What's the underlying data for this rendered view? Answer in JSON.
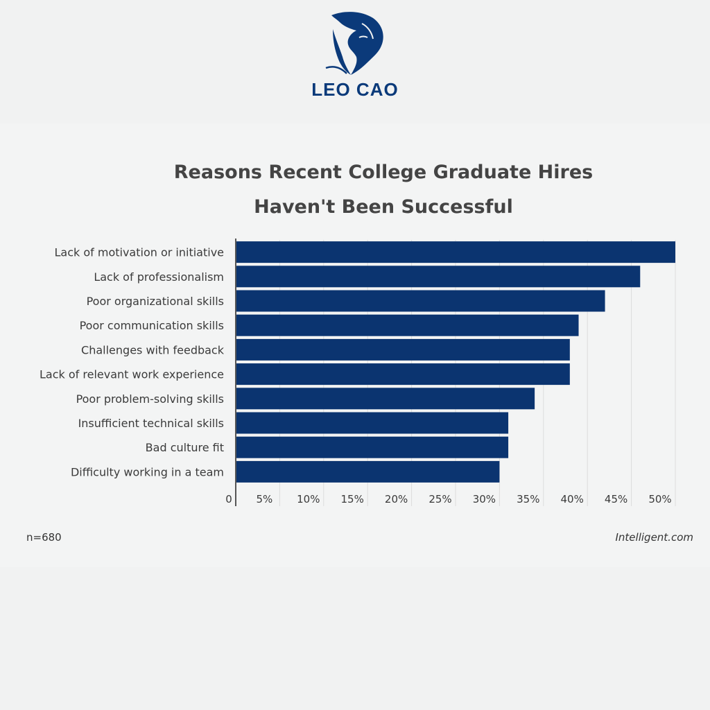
{
  "brand": {
    "name": "LEO CAO",
    "logo_icon": "lion-head-icon",
    "color": "#0b3a7a"
  },
  "footer": {
    "sample_size": "n=680",
    "source": "Intelligent.com"
  },
  "chart_data": {
    "type": "bar",
    "orientation": "horizontal",
    "title_lines": [
      "Reasons Recent College Graduate Hires",
      "Haven't Been Successful"
    ],
    "categories": [
      "Lack of motivation or initiative",
      "Lack of professionalism",
      "Poor organizational skills",
      "Poor communication skills",
      "Challenges with feedback",
      "Lack of relevant work experience",
      "Poor problem-solving skills",
      "Insufficient technical skills",
      "Bad culture fit",
      "Difficulty working in a team"
    ],
    "values": [
      50,
      46,
      42,
      39,
      38,
      38,
      34,
      31,
      31,
      30
    ],
    "x_ticks": [
      "0",
      "5%",
      "10%",
      "15%",
      "20%",
      "25%",
      "30%",
      "35%",
      "40%",
      "45%",
      "50%"
    ],
    "xlim": [
      0,
      50
    ],
    "grid": "vertical",
    "bar_color": "#0b3470"
  }
}
